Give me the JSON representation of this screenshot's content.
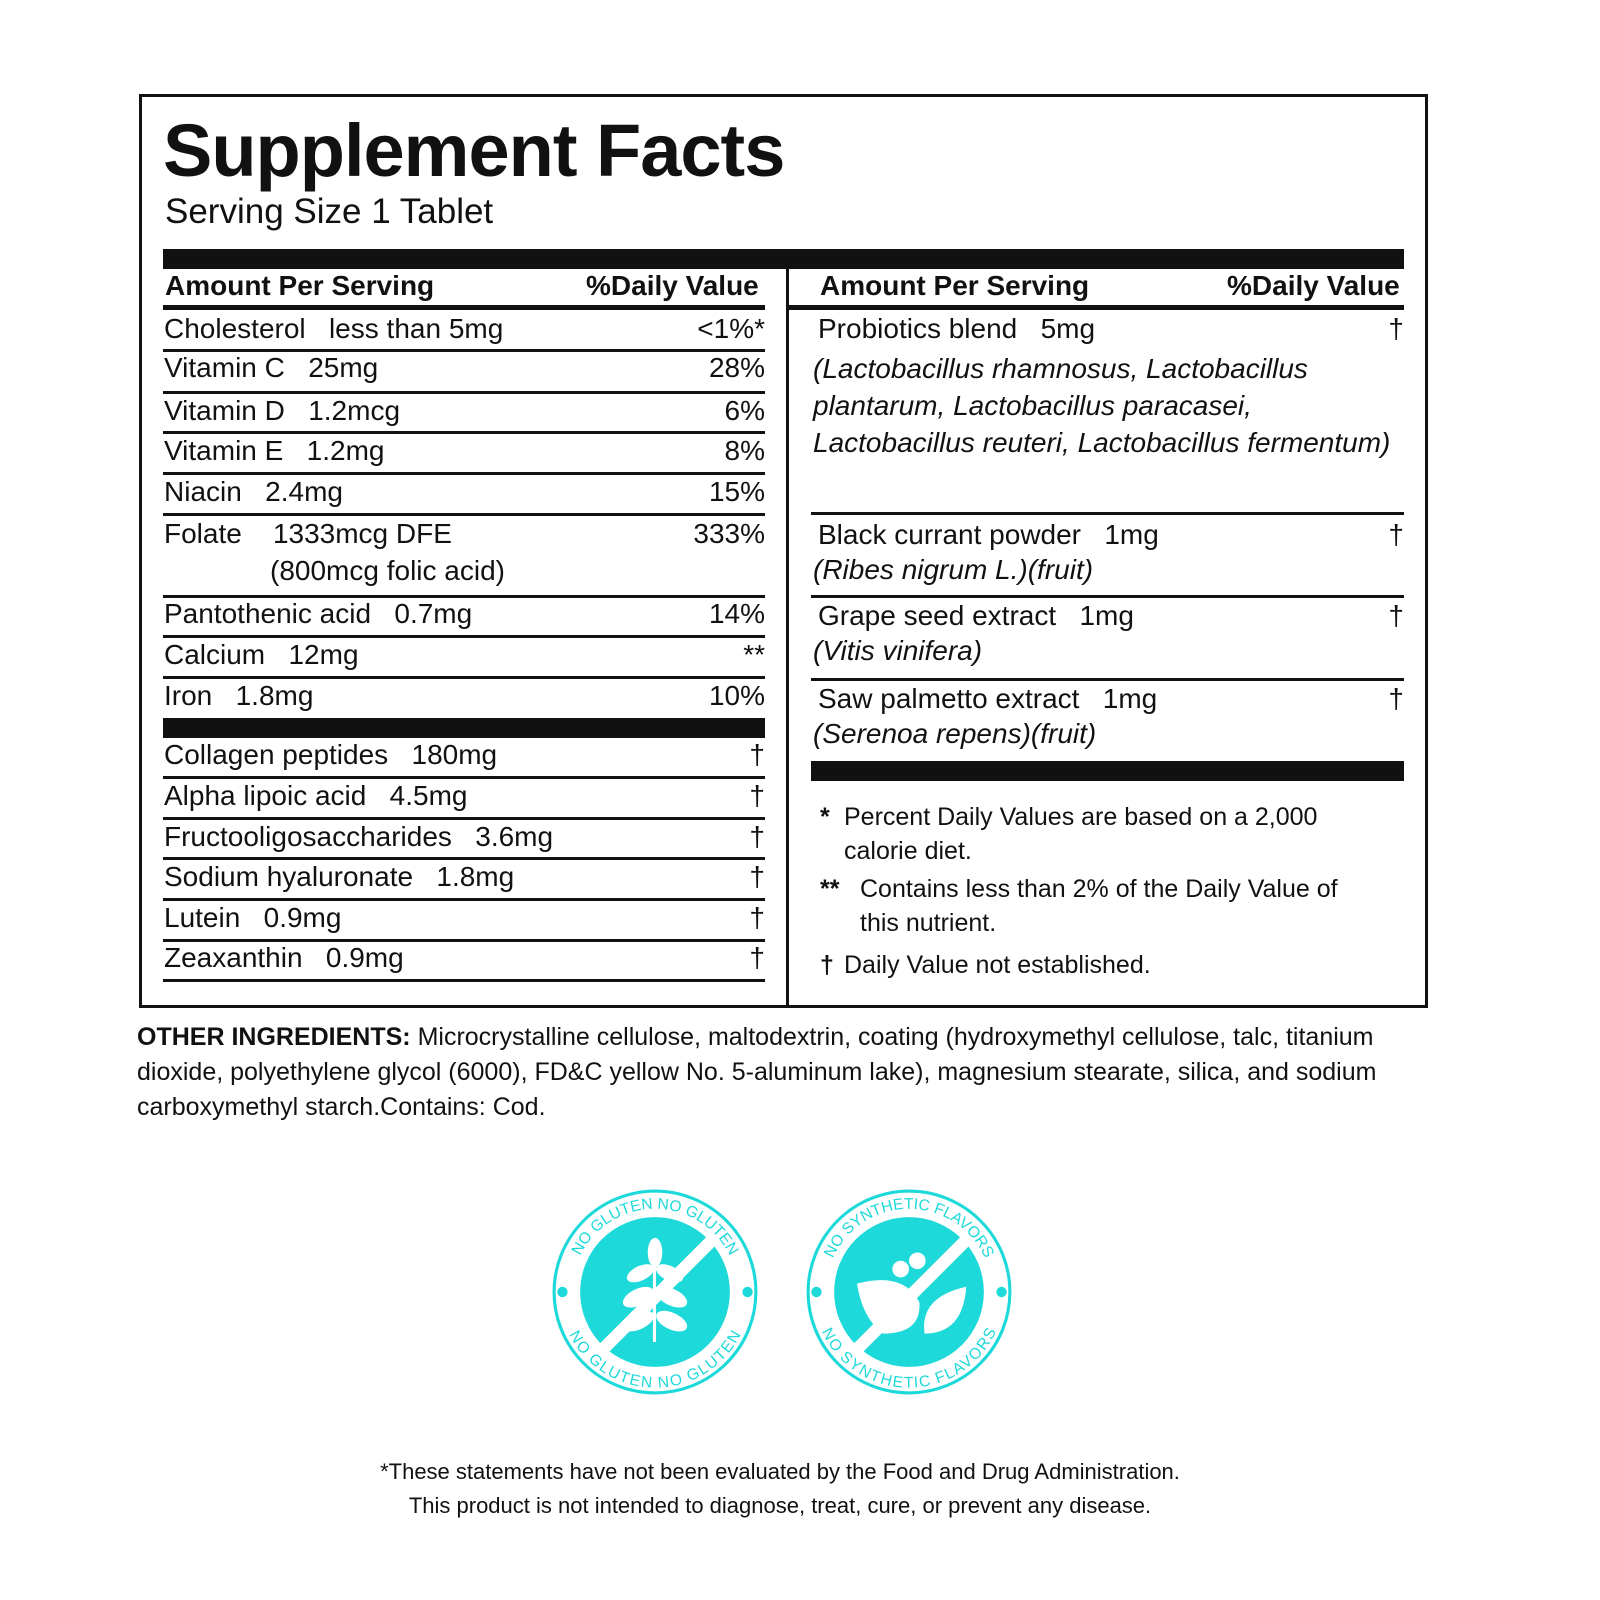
{
  "title": "Supplement Facts",
  "serving_size": "Serving Size 1 Tablet",
  "header": {
    "amount": "Amount Per Serving",
    "dv": "%Daily Value"
  },
  "left_rows": [
    {
      "name": "Cholesterol   less than 5mg",
      "dv": "<1%*"
    },
    {
      "name": "Vitamin C   25mg",
      "dv": "28%"
    },
    {
      "name": "Vitamin D   1.2mcg",
      "dv": "6%"
    },
    {
      "name": "Vitamin E   1.2mg",
      "dv": "8%"
    },
    {
      "name": "Niacin   2.4mg",
      "dv": "15%"
    },
    {
      "name": "Folate    1333mcg DFE",
      "sub": "(800mcg folic acid)",
      "dv": "333%"
    },
    {
      "name": "Pantothenic acid   0.7mg",
      "dv": "14%"
    },
    {
      "name": "Calcium   12mg",
      "dv": "**"
    },
    {
      "name": "Iron   1.8mg",
      "dv": "10%"
    },
    {
      "name": "Collagen peptides   180mg",
      "dv": "†"
    },
    {
      "name": "Alpha lipoic acid   4.5mg",
      "dv": "†"
    },
    {
      "name": "Fructooligosaccharides   3.6mg",
      "dv": "†"
    },
    {
      "name": "Sodium hyaluronate   1.8mg",
      "dv": "†"
    },
    {
      "name": "Lutein   0.9mg",
      "dv": "†"
    },
    {
      "name": "Zeaxanthin   0.9mg",
      "dv": "†"
    }
  ],
  "right_rows": [
    {
      "name": "Probiotics blend   5mg",
      "sub": "(Lactobacillus rhamnosus, Lactobacillus plantarum, Lactobacillus paracasei, Lactobacillus reuteri, Lactobacillus fermentum)",
      "dv": "†"
    },
    {
      "name": "Black currant powder   1mg",
      "sub": "(Ribes nigrum L.)(fruit)",
      "dv": "†"
    },
    {
      "name": "Grape seed extract   1mg",
      "sub": "(Vitis vinifera)",
      "dv": "†"
    },
    {
      "name": "Saw palmetto extract   1mg",
      "sub": "(Serenoa repens)(fruit)",
      "dv": "†"
    }
  ],
  "footnotes": [
    {
      "mark": "*",
      "text": "Percent Daily Values are based on a 2,000 calorie diet."
    },
    {
      "mark": "**",
      "text": "Contains less than 2% of the Daily Value of this nutrient."
    },
    {
      "mark": "†",
      "text": "Daily Value not established."
    }
  ],
  "other_ingredients": {
    "label": "OTHER INGREDIENTS:",
    "text": " Microcrystalline cellulose, maltodextrin, coating (hydroxymethyl cellulose, talc, titanium dioxide, polyethylene glycol (6000), FD&C yellow No. 5-aluminum lake), magnesium stearate, silica, and sodium carboxymethyl starch.Contains: Cod."
  },
  "badges": [
    {
      "text": "NO GLUTEN",
      "icon": "wheat-icon"
    },
    {
      "text": "NO SYNTHETIC FLAVORS",
      "icon": "leaf-icon"
    }
  ],
  "badge_color": "#1ed9d9",
  "disclaimer": [
    "*These statements have not been evaluated by the Food and Drug Administration.",
    "This product is not intended to diagnose, treat, cure, or prevent any disease."
  ]
}
